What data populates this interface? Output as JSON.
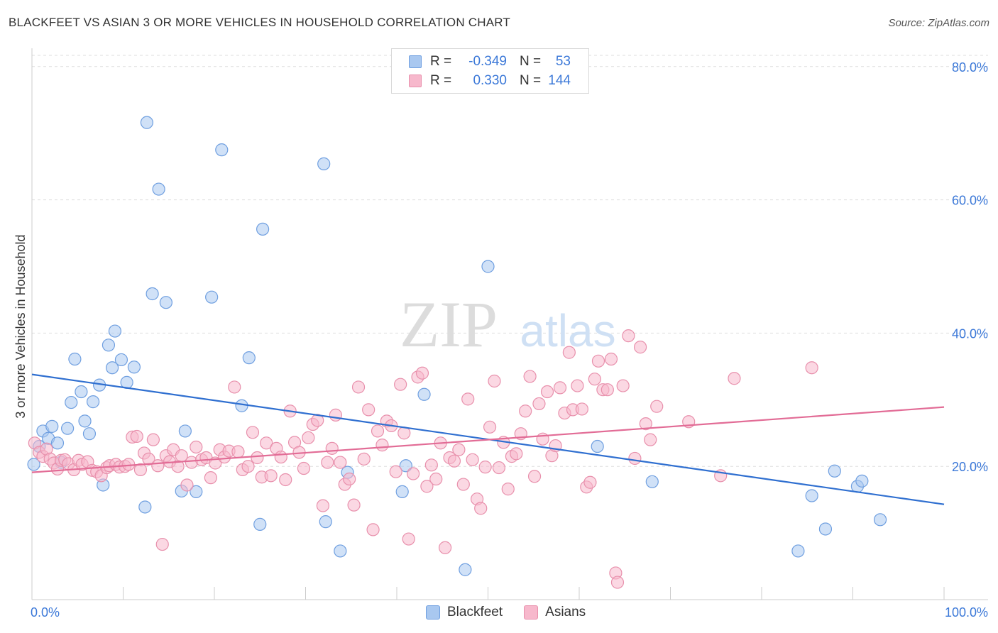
{
  "header": {
    "title": "BLACKFEET VS ASIAN 3 OR MORE VEHICLES IN HOUSEHOLD CORRELATION CHART",
    "source": "Source: ZipAtlas.com"
  },
  "watermark": {
    "zip": "ZIP",
    "atlas": "atlas"
  },
  "legend": {
    "rows": [
      {
        "r_label": "R =",
        "r_value": "-0.349",
        "n_label": "N =",
        "n_value": "53",
        "color": "#a9c8f0",
        "border": "#6f9fe0"
      },
      {
        "r_label": "R =",
        "r_value": "0.330",
        "n_label": "N =",
        "n_value": "144",
        "color": "#f7b8cc",
        "border": "#e890ac"
      }
    ]
  },
  "bottom_legend": [
    {
      "label": "Blackfeet",
      "color": "#a9c8f0",
      "border": "#6f9fe0"
    },
    {
      "label": "Asians",
      "color": "#f7b8cc",
      "border": "#e890ac"
    }
  ],
  "chart_data": {
    "type": "scatter",
    "title": "BLACKFEET VS ASIAN 3 OR MORE VEHICLES IN HOUSEHOLD CORRELATION CHART",
    "xlabel": "",
    "ylabel": "3 or more Vehicles in Household",
    "xlim": [
      0,
      100
    ],
    "ylim": [
      0,
      82
    ],
    "x_tick_labels": [
      "0.0%",
      "100.0%"
    ],
    "y_ticks": [
      20,
      40,
      60,
      80
    ],
    "y_tick_labels": [
      "20.0%",
      "40.0%",
      "60.0%",
      "80.0%"
    ],
    "grid": true,
    "series": [
      {
        "name": "Blackfeet",
        "color": "#6f9fe0",
        "fill": "#a9c8f0",
        "line_color": "#2f6fd0",
        "trend": {
          "x": [
            0,
            100
          ],
          "y": [
            33.8,
            14.3
          ]
        },
        "points": [
          [
            0.2,
            20.3
          ],
          [
            0.8,
            23.0
          ],
          [
            1.2,
            25.3
          ],
          [
            1.8,
            24.2
          ],
          [
            2.2,
            26.0
          ],
          [
            2.8,
            23.5
          ],
          [
            3.2,
            20.6
          ],
          [
            3.9,
            25.7
          ],
          [
            4.3,
            29.6
          ],
          [
            4.7,
            36.1
          ],
          [
            5.4,
            31.2
          ],
          [
            5.8,
            26.8
          ],
          [
            6.3,
            24.9
          ],
          [
            6.7,
            29.7
          ],
          [
            7.4,
            32.2
          ],
          [
            7.8,
            17.2
          ],
          [
            8.4,
            38.2
          ],
          [
            8.8,
            34.8
          ],
          [
            9.1,
            40.3
          ],
          [
            9.8,
            36.0
          ],
          [
            10.4,
            32.6
          ],
          [
            11.2,
            34.9
          ],
          [
            12.4,
            13.9
          ],
          [
            12.6,
            71.6
          ],
          [
            13.2,
            45.9
          ],
          [
            13.9,
            61.6
          ],
          [
            14.7,
            44.6
          ],
          [
            16.4,
            16.3
          ],
          [
            16.8,
            25.3
          ],
          [
            18.0,
            16.2
          ],
          [
            19.7,
            45.4
          ],
          [
            20.8,
            67.5
          ],
          [
            23.0,
            29.1
          ],
          [
            23.8,
            36.3
          ],
          [
            25.0,
            11.3
          ],
          [
            25.3,
            55.6
          ],
          [
            32.0,
            65.4
          ],
          [
            32.2,
            11.7
          ],
          [
            33.8,
            7.3
          ],
          [
            34.6,
            19.1
          ],
          [
            40.6,
            16.2
          ],
          [
            41.0,
            20.1
          ],
          [
            43.0,
            30.8
          ],
          [
            47.5,
            4.5
          ],
          [
            50.0,
            50.0
          ],
          [
            62.0,
            23.0
          ],
          [
            68.0,
            17.7
          ],
          [
            84.0,
            7.3
          ],
          [
            85.5,
            15.6
          ],
          [
            87.0,
            10.6
          ],
          [
            88.0,
            19.3
          ],
          [
            90.5,
            17.0
          ],
          [
            91.0,
            17.8
          ],
          [
            93.0,
            12.0
          ]
        ]
      },
      {
        "name": "Asians",
        "color": "#e890ac",
        "fill": "#f7b8cc",
        "line_color": "#e26c96",
        "trend": {
          "x": [
            0,
            100
          ],
          "y": [
            19.1,
            28.9
          ]
        },
        "points": [
          [
            0.3,
            23.5
          ],
          [
            0.8,
            22.1
          ],
          [
            1.2,
            21.5
          ],
          [
            1.6,
            22.6
          ],
          [
            2.0,
            21.1
          ],
          [
            2.4,
            20.5
          ],
          [
            2.8,
            19.6
          ],
          [
            3.2,
            20.9
          ],
          [
            3.6,
            21.0
          ],
          [
            4.0,
            20.4
          ],
          [
            4.6,
            19.5
          ],
          [
            5.1,
            20.9
          ],
          [
            5.5,
            20.3
          ],
          [
            6.1,
            20.7
          ],
          [
            6.6,
            19.4
          ],
          [
            7.1,
            19.2
          ],
          [
            7.6,
            18.6
          ],
          [
            8.2,
            19.8
          ],
          [
            8.5,
            20.1
          ],
          [
            9.2,
            20.3
          ],
          [
            9.6,
            19.9
          ],
          [
            10.2,
            20.0
          ],
          [
            10.6,
            20.3
          ],
          [
            11.0,
            24.4
          ],
          [
            11.5,
            24.5
          ],
          [
            11.9,
            19.5
          ],
          [
            12.3,
            22.0
          ],
          [
            12.8,
            21.1
          ],
          [
            13.3,
            24.0
          ],
          [
            13.8,
            20.1
          ],
          [
            14.3,
            8.3
          ],
          [
            14.7,
            21.6
          ],
          [
            15.1,
            20.7
          ],
          [
            15.5,
            22.5
          ],
          [
            16.0,
            20.0
          ],
          [
            16.4,
            21.6
          ],
          [
            17.0,
            17.2
          ],
          [
            17.5,
            20.6
          ],
          [
            18.0,
            22.9
          ],
          [
            18.6,
            21.0
          ],
          [
            19.1,
            21.3
          ],
          [
            19.6,
            18.3
          ],
          [
            20.1,
            20.5
          ],
          [
            20.6,
            22.5
          ],
          [
            21.1,
            21.4
          ],
          [
            21.6,
            22.3
          ],
          [
            22.2,
            31.9
          ],
          [
            22.6,
            22.2
          ],
          [
            23.1,
            19.5
          ],
          [
            23.7,
            20.0
          ],
          [
            24.2,
            25.1
          ],
          [
            24.7,
            21.3
          ],
          [
            25.2,
            18.4
          ],
          [
            25.7,
            23.5
          ],
          [
            26.2,
            18.6
          ],
          [
            26.8,
            22.7
          ],
          [
            27.3,
            21.4
          ],
          [
            27.8,
            18.0
          ],
          [
            28.3,
            28.3
          ],
          [
            28.8,
            23.6
          ],
          [
            29.3,
            22.1
          ],
          [
            29.8,
            19.7
          ],
          [
            30.3,
            24.3
          ],
          [
            30.8,
            26.3
          ],
          [
            31.3,
            26.9
          ],
          [
            31.9,
            14.1
          ],
          [
            32.4,
            20.6
          ],
          [
            32.9,
            22.7
          ],
          [
            33.3,
            27.7
          ],
          [
            33.8,
            20.6
          ],
          [
            34.3,
            17.3
          ],
          [
            34.8,
            18.1
          ],
          [
            35.3,
            14.2
          ],
          [
            35.8,
            31.9
          ],
          [
            36.4,
            21.1
          ],
          [
            36.9,
            28.5
          ],
          [
            37.4,
            10.5
          ],
          [
            37.9,
            25.3
          ],
          [
            38.4,
            23.2
          ],
          [
            38.9,
            26.8
          ],
          [
            39.4,
            26.1
          ],
          [
            39.9,
            19.2
          ],
          [
            40.4,
            32.3
          ],
          [
            40.8,
            25.0
          ],
          [
            41.3,
            9.1
          ],
          [
            41.8,
            18.9
          ],
          [
            42.3,
            33.4
          ],
          [
            42.8,
            34.0
          ],
          [
            43.3,
            17.0
          ],
          [
            43.8,
            20.2
          ],
          [
            44.3,
            18.1
          ],
          [
            44.8,
            23.5
          ],
          [
            45.3,
            7.8
          ],
          [
            45.8,
            21.3
          ],
          [
            46.3,
            20.8
          ],
          [
            46.8,
            22.5
          ],
          [
            47.3,
            17.3
          ],
          [
            47.8,
            30.1
          ],
          [
            48.3,
            21.0
          ],
          [
            48.8,
            15.1
          ],
          [
            49.2,
            13.7
          ],
          [
            49.7,
            19.9
          ],
          [
            50.2,
            25.9
          ],
          [
            50.7,
            32.8
          ],
          [
            51.2,
            19.8
          ],
          [
            51.7,
            23.6
          ],
          [
            52.2,
            16.6
          ],
          [
            52.6,
            21.5
          ],
          [
            53.1,
            21.9
          ],
          [
            53.6,
            24.9
          ],
          [
            54.1,
            28.3
          ],
          [
            54.6,
            33.5
          ],
          [
            55.1,
            18.5
          ],
          [
            55.6,
            29.4
          ],
          [
            56.0,
            24.1
          ],
          [
            56.5,
            31.2
          ],
          [
            57.0,
            21.6
          ],
          [
            57.4,
            23.1
          ],
          [
            57.9,
            31.8
          ],
          [
            58.4,
            28.0
          ],
          [
            58.9,
            37.1
          ],
          [
            59.3,
            28.5
          ],
          [
            59.8,
            32.1
          ],
          [
            60.3,
            28.6
          ],
          [
            60.8,
            16.9
          ],
          [
            61.2,
            17.6
          ],
          [
            61.7,
            33.1
          ],
          [
            62.1,
            35.8
          ],
          [
            62.6,
            31.5
          ],
          [
            63.1,
            31.5
          ],
          [
            63.5,
            36.1
          ],
          [
            64.0,
            4.0
          ],
          [
            64.2,
            2.6
          ],
          [
            64.8,
            32.1
          ],
          [
            65.4,
            39.6
          ],
          [
            66.1,
            21.2
          ],
          [
            66.7,
            37.9
          ],
          [
            67.3,
            26.4
          ],
          [
            67.8,
            24.0
          ],
          [
            68.5,
            29.0
          ],
          [
            72.0,
            26.7
          ],
          [
            75.5,
            18.6
          ],
          [
            77.0,
            33.2
          ],
          [
            85.5,
            34.8
          ]
        ]
      }
    ]
  }
}
